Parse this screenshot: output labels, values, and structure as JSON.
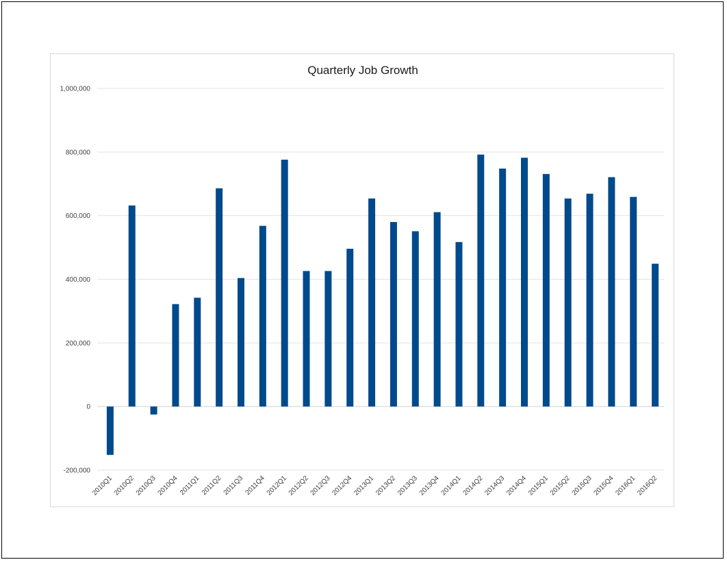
{
  "chart_data": {
    "type": "bar",
    "title": "Quarterly Job Growth",
    "xlabel": "",
    "ylabel": "",
    "ylim": [
      -200000,
      1000000
    ],
    "y_ticks": [
      1000000,
      800000,
      600000,
      400000,
      200000,
      0,
      -200000
    ],
    "y_tick_labels": [
      "1,000,000",
      "800,000",
      "600,000",
      "400,000",
      "200,000",
      "0",
      "-200,000"
    ],
    "grid": true,
    "legend": "none",
    "bar_color": "#004a8c",
    "categories": [
      "2010Q1",
      "2010Q2",
      "2010Q3",
      "2010Q4",
      "2011Q1",
      "2011Q2",
      "2011Q3",
      "2011Q4",
      "2012Q1",
      "2012Q2",
      "2012Q3",
      "2012Q4",
      "2013Q1",
      "2013Q2",
      "2013Q3",
      "2013Q4",
      "2014Q1",
      "2014Q2",
      "2014Q3",
      "2014Q4",
      "2015Q1",
      "2015Q2",
      "2015Q3",
      "2015Q4",
      "2016Q1",
      "2016Q2"
    ],
    "values": [
      -152000,
      632000,
      -25000,
      322000,
      342000,
      686000,
      404000,
      568000,
      776000,
      426000,
      426000,
      496000,
      654000,
      580000,
      551000,
      611000,
      517000,
      792000,
      748000,
      782000,
      731000,
      654000,
      669000,
      721000,
      659000,
      449000
    ]
  }
}
